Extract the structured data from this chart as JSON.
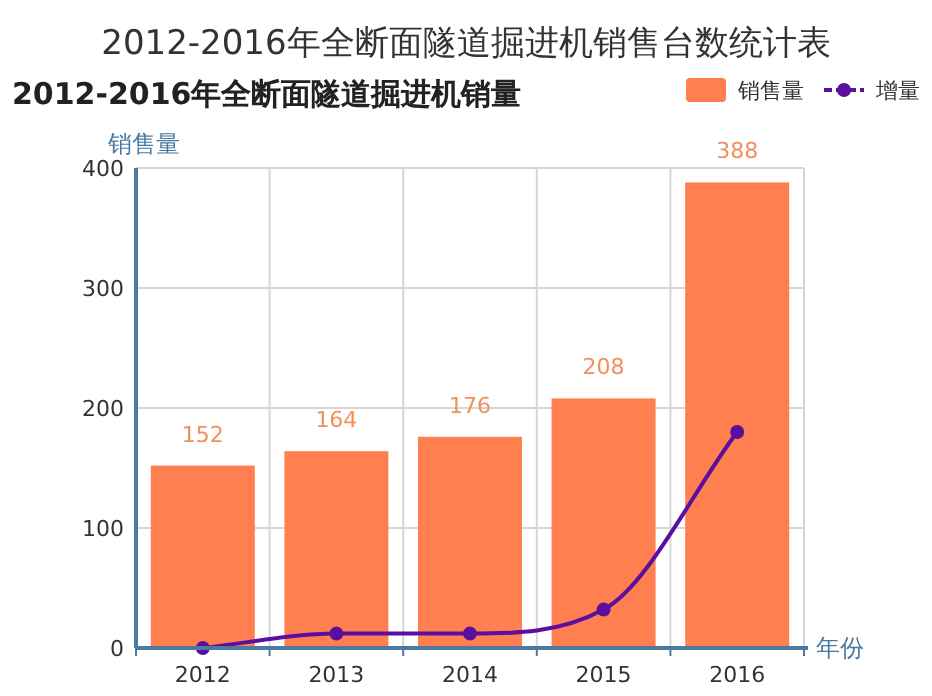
{
  "chart_data": {
    "type": "bar",
    "title": "2012-2016年全断面隧道掘进机销售台数统计表",
    "subtitle": "2012-2016年全断面隧道掘进机销量",
    "ylabel": "销售量",
    "xlabel": "年份",
    "categories": [
      "2012",
      "2013",
      "2014",
      "2015",
      "2016"
    ],
    "series": [
      {
        "name": "销售量",
        "color": "#ff7f50",
        "values": [
          152,
          164,
          176,
          208,
          388
        ],
        "value_labels": [
          "152",
          "164",
          "176",
          "208",
          "388"
        ]
      },
      {
        "name": "增量",
        "type": "line",
        "color": "#5a0f9e",
        "values": [
          0,
          12,
          12,
          32,
          180
        ]
      }
    ],
    "ylim": [
      0,
      400
    ],
    "yticks": [
      0,
      100,
      200,
      300,
      400
    ],
    "grid": true,
    "legend": "top right",
    "marker": "circle"
  }
}
